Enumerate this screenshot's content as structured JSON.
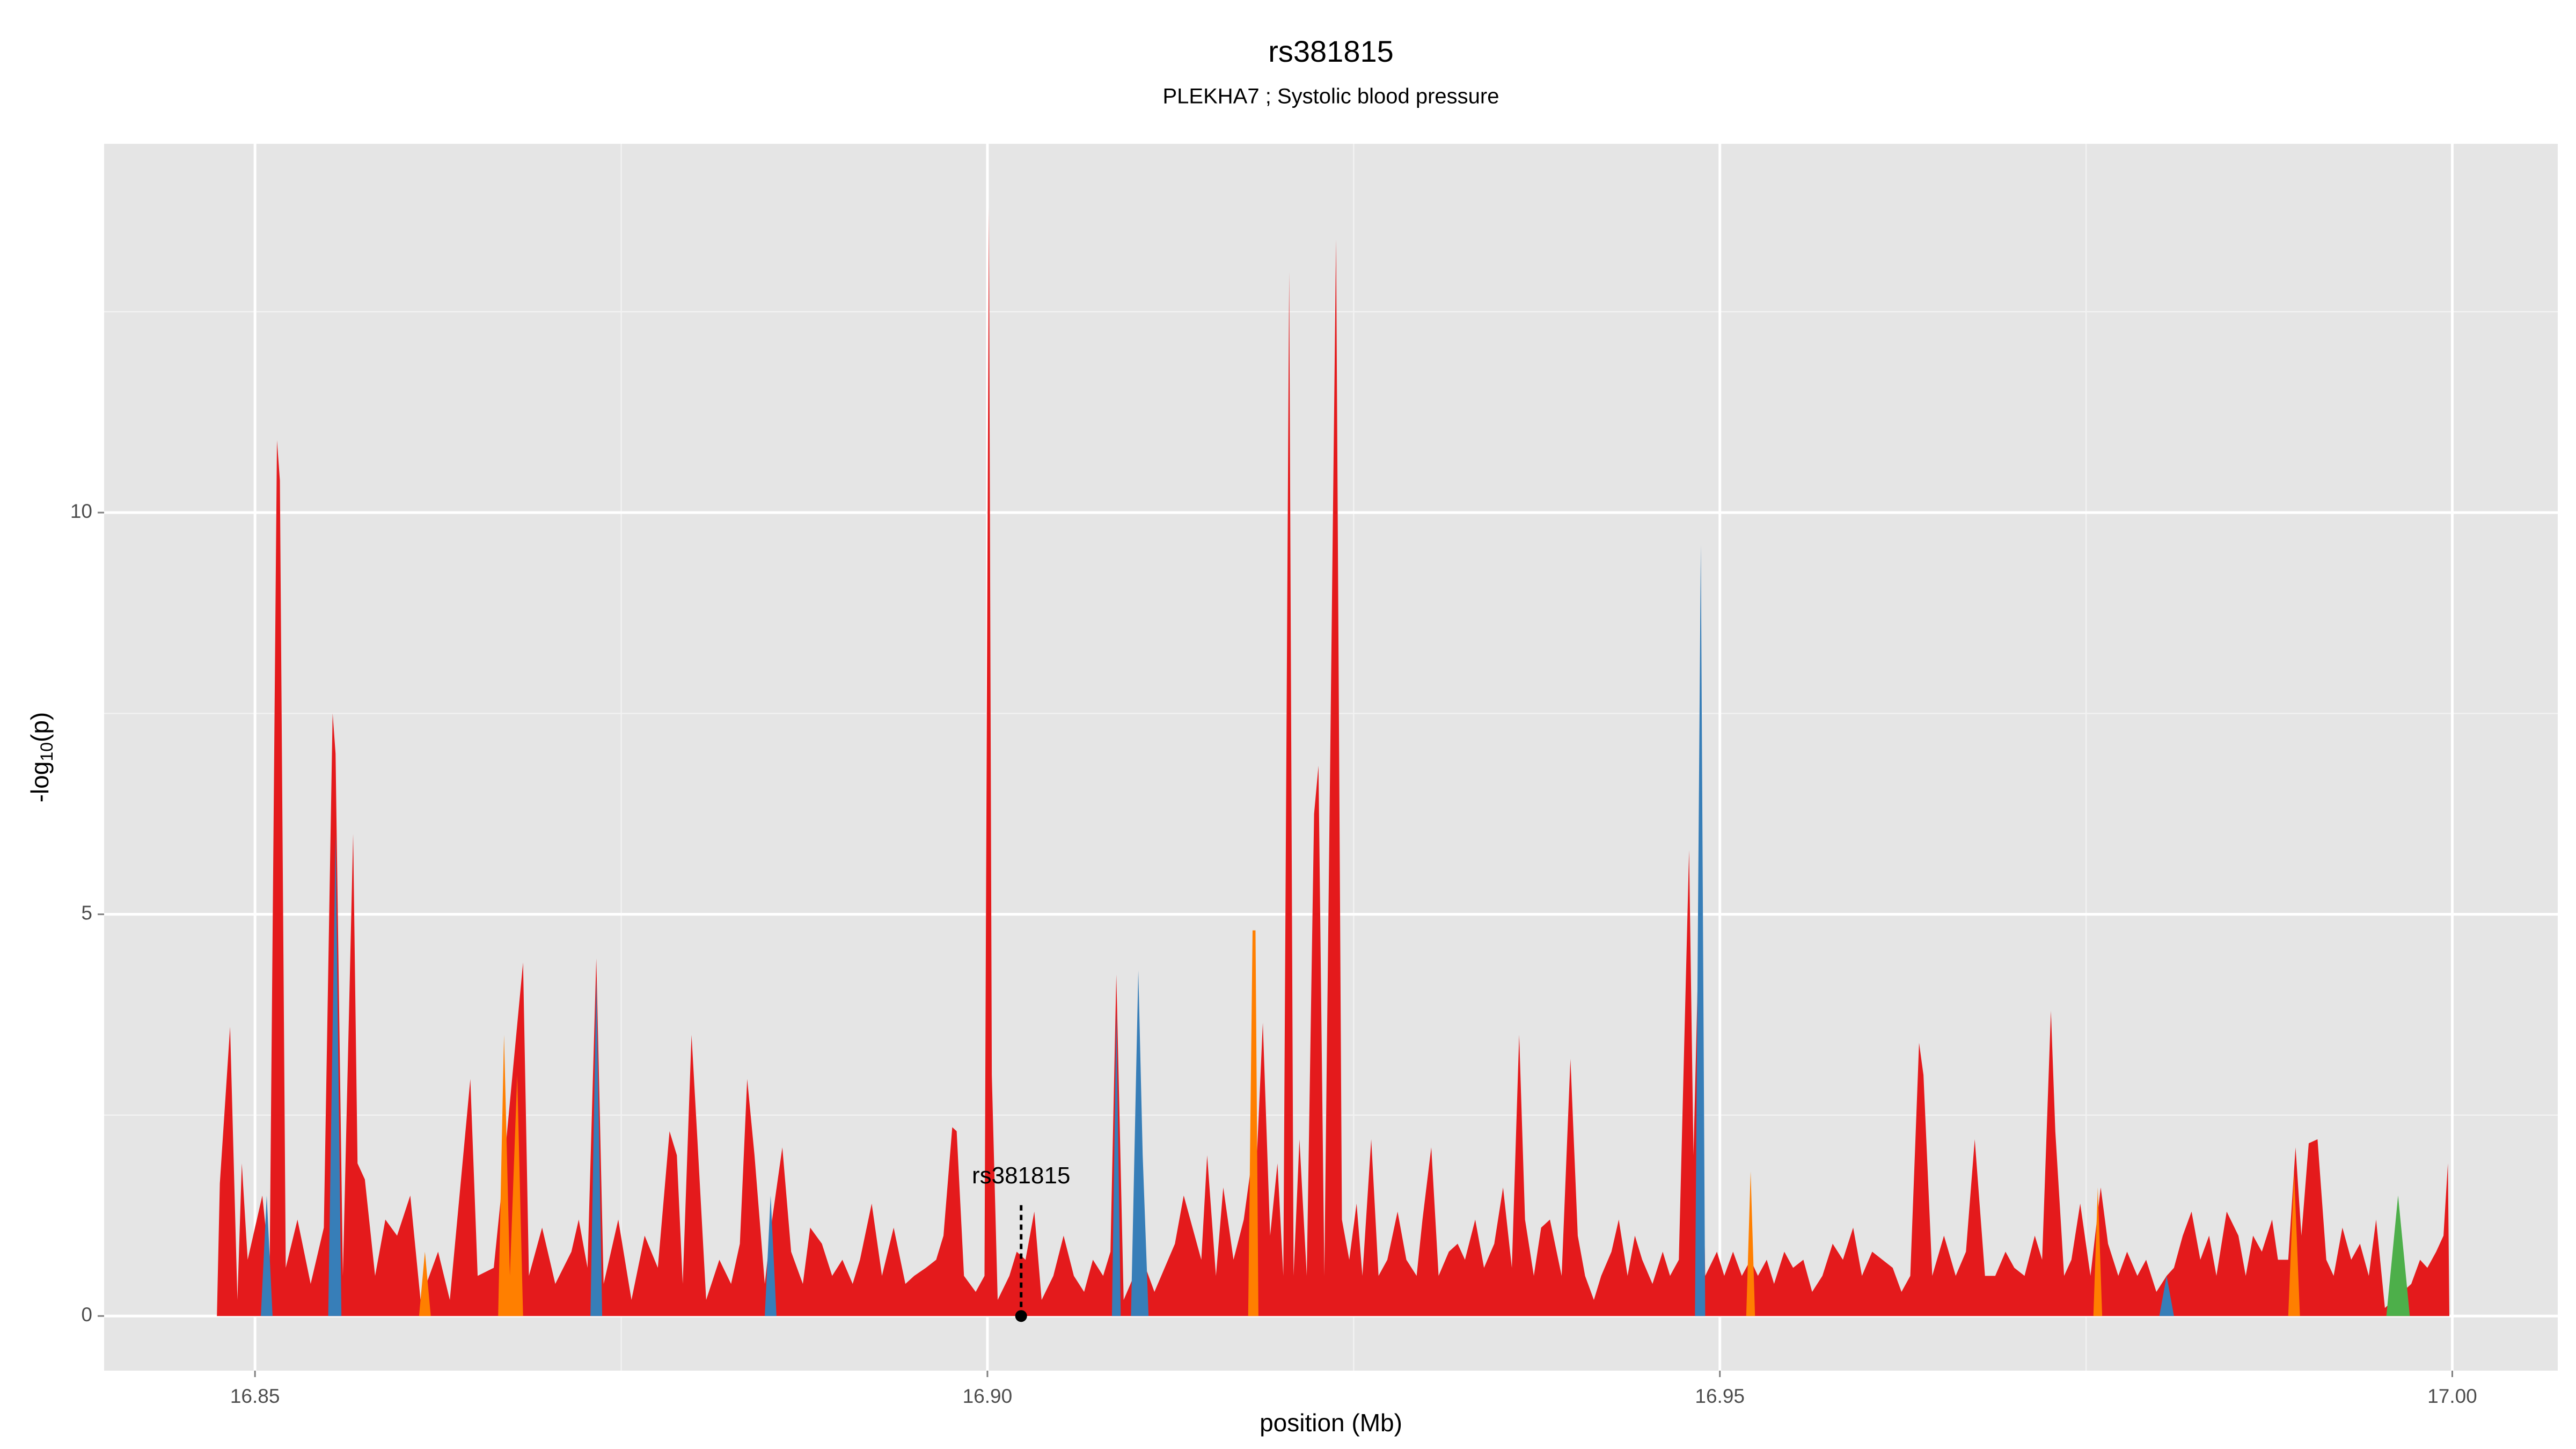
{
  "chart_data": {
    "type": "area",
    "title": "rs381815",
    "subtitle": "PLEKHA7 ; Systolic blood pressure",
    "x_label": "position (Mb)",
    "y_label": [
      "-log",
      "10",
      "(p)"
    ],
    "xlim": [
      16.8397,
      17.0072
    ],
    "ylim": [
      -0.68,
      14.59
    ],
    "xticks": [
      16.85,
      {
        "value": 16.9,
        "label": "16.90"
      },
      16.95,
      {
        "value": 17,
        "label": "17.00"
      }
    ],
    "yticks": [
      0,
      5,
      10
    ],
    "x_minor_ticks": [
      16.875,
      16.925,
      16.975
    ],
    "y_minor_ticks": [
      2.5,
      7.5,
      12.5
    ],
    "grid": true,
    "background": "#e5e5e5",
    "series": [
      {
        "color": "#e41a1c",
        "x": [
          16.8474,
          16.8476,
          16.8483,
          16.8488,
          16.8491,
          16.8495,
          16.8505,
          16.851,
          16.8515,
          16.8517,
          16.8521,
          16.8529,
          16.8538,
          16.8547,
          16.8553,
          16.8555,
          16.856,
          16.8567,
          16.857,
          16.8575,
          16.8582,
          16.8589,
          16.8597,
          16.8606,
          16.8613,
          16.8625,
          16.8633,
          16.8647,
          16.8652,
          16.8663,
          16.8668,
          16.8683,
          16.8687,
          16.8696,
          16.8705,
          16.8716,
          16.8721,
          16.8727,
          16.8733,
          16.8738,
          16.8748,
          16.8757,
          16.8766,
          16.8775,
          16.8783,
          16.8788,
          16.8792,
          16.8798,
          16.8802,
          16.8808,
          16.8817,
          16.8825,
          16.8831,
          16.8836,
          16.8841,
          16.8848,
          16.8853,
          16.886,
          16.8866,
          16.8874,
          16.8879,
          16.8887,
          16.8894,
          16.8901,
          16.8908,
          16.8913,
          16.8921,
          16.8928,
          16.8936,
          16.8944,
          16.895,
          16.8958,
          16.8965,
          16.897,
          16.8976,
          16.8979,
          16.8984,
          16.8992,
          16.8998,
          16.9001,
          16.9003,
          16.9007,
          16.9015,
          16.902,
          16.9026,
          16.9032,
          16.9037,
          16.9045,
          16.9052,
          16.9059,
          16.9066,
          16.9072,
          16.9079,
          16.9084,
          16.9088,
          16.9093,
          16.91,
          16.9106,
          16.9114,
          16.9121,
          16.9128,
          16.9134,
          16.914,
          16.9146,
          16.915,
          16.9156,
          16.9161,
          16.9168,
          16.9175,
          16.9181,
          16.9184,
          16.9188,
          16.9193,
          16.9198,
          16.9202,
          16.9206,
          16.9209,
          16.9213,
          16.9218,
          16.9223,
          16.9226,
          16.923,
          16.9238,
          16.9242,
          16.9247,
          16.9252,
          16.9256,
          16.9262,
          16.9267,
          16.9273,
          16.928,
          16.9286,
          16.9293,
          16.9297,
          16.9303,
          16.9308,
          16.9315,
          16.9321,
          16.9326,
          16.9333,
          16.9339,
          16.9346,
          16.9352,
          16.9358,
          16.9363,
          16.9367,
          16.9373,
          16.9378,
          16.9384,
          16.9392,
          16.9398,
          16.9403,
          16.9408,
          16.9414,
          16.9419,
          16.9426,
          16.9431,
          16.9437,
          16.9442,
          16.9447,
          16.9454,
          16.9461,
          16.9466,
          16.9472,
          16.9479,
          16.9482,
          16.9486,
          16.949,
          16.9498,
          16.9503,
          16.9509,
          16.9515,
          16.9521,
          16.9526,
          16.9532,
          16.9537,
          16.9544,
          16.955,
          16.9557,
          16.9563,
          16.957,
          16.9577,
          16.9584,
          16.9591,
          16.9597,
          16.9604,
          16.9611,
          16.9618,
          16.9624,
          16.963,
          16.9636,
          16.9639,
          16.9645,
          16.9653,
          16.9661,
          16.9668,
          16.9674,
          16.9681,
          16.9688,
          16.9695,
          16.9701,
          16.9708,
          16.9715,
          16.972,
          16.9726,
          16.9729,
          16.9735,
          16.974,
          16.9746,
          16.9753,
          16.976,
          16.9765,
          16.9772,
          16.9778,
          16.9785,
          16.9791,
          16.9798,
          16.9805,
          16.981,
          16.9816,
          16.9822,
          16.9828,
          16.9834,
          16.9839,
          16.9846,
          16.9854,
          16.9859,
          16.9864,
          16.987,
          16.9877,
          16.9881,
          16.9888,
          16.9893,
          16.9897,
          16.9902,
          16.9908,
          16.9914,
          16.9919,
          16.9925,
          16.9931,
          16.9937,
          16.9943,
          16.9948,
          16.9954,
          16.9972,
          16.9978,
          16.9983,
          16.9989,
          16.9994,
          16.9997,
          16.9998
        ],
        "values": [
          0,
          1.65,
          3.6,
          0.2,
          1.9,
          0.7,
          1.5,
          0.6,
          10.9,
          10.4,
          0.6,
          1.2,
          0.4,
          1.1,
          7.5,
          7.0,
          0.5,
          6.0,
          1.9,
          1.7,
          0.5,
          1.2,
          1.0,
          1.5,
          0.2,
          0.8,
          0.2,
          2.95,
          0.5,
          0.6,
          1.5,
          4.4,
          0.5,
          1.1,
          0.4,
          0.8,
          1.2,
          0.6,
          4.45,
          0.4,
          1.2,
          0.2,
          1.0,
          0.6,
          2.3,
          2.0,
          0.4,
          3.5,
          2.2,
          0.2,
          0.7,
          0.4,
          0.9,
          2.95,
          2.0,
          0.4,
          1.2,
          2.1,
          0.8,
          0.4,
          1.1,
          0.9,
          0.5,
          0.7,
          0.4,
          0.7,
          1.4,
          0.5,
          1.1,
          0.4,
          0.5,
          0.6,
          0.7,
          1.0,
          2.35,
          2.3,
          0.5,
          0.3,
          0.5,
          13.8,
          3.0,
          0.2,
          0.5,
          0.8,
          0.7,
          1.3,
          0.2,
          0.5,
          1.0,
          0.5,
          0.3,
          0.7,
          0.5,
          0.8,
          4.25,
          0.2,
          0.5,
          0.7,
          0.3,
          0.6,
          0.9,
          1.5,
          1.1,
          0.7,
          2.0,
          0.5,
          1.6,
          0.7,
          1.2,
          2.0,
          2.0,
          3.65,
          1.0,
          1.9,
          0.5,
          13.0,
          0.5,
          2.2,
          0.5,
          6.25,
          6.85,
          0.5,
          13.4,
          1.2,
          0.7,
          1.4,
          0.5,
          2.2,
          0.5,
          0.7,
          1.3,
          0.7,
          0.5,
          1.2,
          2.1,
          0.5,
          0.8,
          0.9,
          0.7,
          1.2,
          0.6,
          0.9,
          1.6,
          0.6,
          3.5,
          1.2,
          0.5,
          1.1,
          1.2,
          0.5,
          3.2,
          1.0,
          0.5,
          0.2,
          0.5,
          0.8,
          1.2,
          0.5,
          1.0,
          0.7,
          0.4,
          0.8,
          0.5,
          0.7,
          5.8,
          2.0,
          5.0,
          0.5,
          0.8,
          0.5,
          0.8,
          0.5,
          0.7,
          0.5,
          0.7,
          0.4,
          0.8,
          0.6,
          0.7,
          0.3,
          0.5,
          0.9,
          0.7,
          1.1,
          0.5,
          0.8,
          0.7,
          0.6,
          0.3,
          0.5,
          3.4,
          3.0,
          0.5,
          1.0,
          0.5,
          0.8,
          2.2,
          0.5,
          0.5,
          0.8,
          0.6,
          0.5,
          1.0,
          0.7,
          3.8,
          2.3,
          0.5,
          0.7,
          1.4,
          0.5,
          1.6,
          0.9,
          0.5,
          0.8,
          0.5,
          0.7,
          0.3,
          0.5,
          0.6,
          1.0,
          1.3,
          0.7,
          1.0,
          0.5,
          1.3,
          1.0,
          0.5,
          1.0,
          0.8,
          1.2,
          0.7,
          0.7,
          2.1,
          1.0,
          2.15,
          2.2,
          0.7,
          0.5,
          1.1,
          0.7,
          0.9,
          0.5,
          1.2,
          0.1,
          0.4,
          0.7,
          0.6,
          0.8,
          1.0,
          1.9,
          0
        ]
      },
      {
        "color": "#ff7f00",
        "x": [
          16.8612,
          16.8616,
          16.862,
          16.8666,
          16.867,
          16.8674,
          16.8679,
          16.8683,
          16.9178,
          16.9181,
          16.9183,
          16.9185,
          16.9518,
          16.9521,
          16.9524,
          16.9755,
          16.9758,
          16.9761,
          16.9888,
          16.9892,
          16.9896
        ],
        "values": [
          0,
          0.8,
          0,
          0,
          3.5,
          0.5,
          3.0,
          0,
          0,
          4.8,
          4.8,
          0,
          0,
          1.8,
          0,
          0,
          1.6,
          0,
          0,
          1.8,
          0
        ]
      },
      {
        "color": "#377eb8",
        "x": [
          16.8504,
          16.8508,
          16.8512,
          16.855,
          16.8555,
          16.8559,
          16.8729,
          16.8733,
          16.8737,
          16.8848,
          16.8852,
          16.8856,
          16.9085,
          16.9088,
          16.9091,
          16.9098,
          16.9103,
          16.9106,
          16.911,
          16.9483,
          16.9487,
          16.949,
          16.98,
          16.9805,
          16.981
        ],
        "values": [
          0,
          1.5,
          0,
          0,
          6.0,
          0,
          0,
          4.2,
          0,
          0,
          1.5,
          0,
          0,
          3.8,
          0,
          0,
          4.3,
          2.0,
          0,
          0,
          9.6,
          0,
          0,
          0.5,
          0
        ]
      },
      {
        "color": "#4daf4a",
        "x": [
          16.9955,
          16.9963,
          16.9971
        ],
        "values": [
          0,
          1.5,
          0
        ]
      }
    ],
    "annotation": {
      "text": "rs381815",
      "x": 16.9023,
      "label_y": 1.73,
      "line_top": 1.38,
      "point_y": 0
    }
  }
}
